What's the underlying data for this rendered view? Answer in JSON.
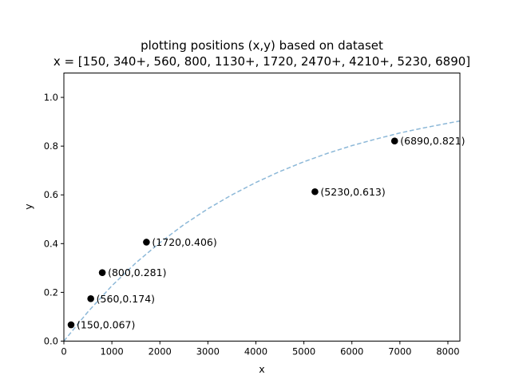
{
  "chart_data": {
    "type": "scatter",
    "title_line1": "plotting positions (x,y) based on dataset",
    "title_line2": "x = [150, 340+, 560, 800, 1130+, 1720, 2470+, 4210+, 5230, 6890]",
    "xlabel": "x",
    "ylabel": "y",
    "xlim": [
      0,
      8250
    ],
    "ylim": [
      0,
      1.1
    ],
    "xticks": [
      0,
      1000,
      2000,
      3000,
      4000,
      5000,
      6000,
      7000,
      8000
    ],
    "yticks": [
      0.0,
      0.2,
      0.4,
      0.6,
      0.8,
      1.0
    ],
    "xtick_labels": [
      "0",
      "1000",
      "2000",
      "3000",
      "4000",
      "5000",
      "6000",
      "7000",
      "8000"
    ],
    "ytick_labels": [
      "0.0",
      "0.2",
      "0.4",
      "0.6",
      "0.8",
      "1.0"
    ],
    "points": [
      {
        "x": 150,
        "y": 0.067,
        "label": "(150,0.067)"
      },
      {
        "x": 560,
        "y": 0.174,
        "label": "(560,0.174)"
      },
      {
        "x": 800,
        "y": 0.281,
        "label": "(800,0.281)"
      },
      {
        "x": 1720,
        "y": 0.406,
        "label": "(1720,0.406)"
      },
      {
        "x": 5230,
        "y": 0.613,
        "label": "(5230,0.613)"
      },
      {
        "x": 6890,
        "y": 0.821,
        "label": "(6890,0.821)"
      }
    ],
    "fit_curve": {
      "style": "dashed",
      "color": "#8cb8d8",
      "x": [
        0,
        500,
        1000,
        1500,
        2000,
        2500,
        3000,
        3500,
        4000,
        4500,
        5000,
        5500,
        6000,
        6500,
        7000,
        7500,
        8000,
        8250
      ],
      "y": [
        0.0,
        0.12,
        0.227,
        0.321,
        0.404,
        0.478,
        0.543,
        0.6,
        0.651,
        0.696,
        0.736,
        0.771,
        0.802,
        0.829,
        0.854,
        0.875,
        0.894,
        0.903
      ]
    },
    "point_color": "#000000"
  }
}
